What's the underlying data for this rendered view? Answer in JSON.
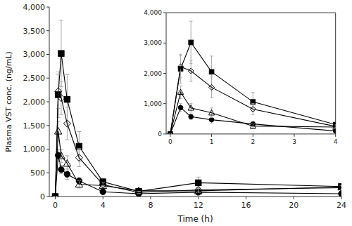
{
  "chart_data": [
    {
      "type": "line",
      "xlabel": "Time (h)",
      "ylabel": "Plasma VST conc. (ng/mL)",
      "x": [
        0,
        0.25,
        0.5,
        1,
        2,
        4,
        7,
        12,
        24
      ],
      "series": [
        {
          "color": "#000000",
          "marker": "circle",
          "line_style": "solid",
          "values": [
            0,
            870,
            570,
            470,
            330,
            100,
            60,
            90,
            60
          ],
          "errors": [
            0,
            130,
            90,
            110,
            70,
            30,
            15,
            25,
            15
          ]
        },
        {
          "color": "#000000",
          "marker": "triangle-open",
          "line_style": "solid",
          "values": [
            0,
            1380,
            860,
            700,
            260,
            230,
            120,
            120,
            200
          ],
          "errors": [
            0,
            210,
            140,
            160,
            80,
            55,
            35,
            35,
            45
          ]
        },
        {
          "color": "#000000",
          "marker": "square",
          "line_style": "solid",
          "values": [
            0,
            2150,
            3020,
            2050,
            1060,
            310,
            110,
            290,
            210
          ],
          "errors": [
            0,
            480,
            700,
            520,
            310,
            75,
            35,
            120,
            55
          ]
        },
        {
          "color": "#000000",
          "marker": "diamond-open",
          "line_style": "solid",
          "values": [
            0,
            2220,
            2080,
            1540,
            820,
            250,
            85,
            140,
            185
          ],
          "errors": [
            0,
            360,
            350,
            340,
            190,
            55,
            25,
            45,
            45
          ]
        }
      ],
      "xlim": [
        -0.5,
        24
      ],
      "ylim": [
        0,
        4000
      ],
      "xticks": [
        0,
        4,
        8,
        12,
        16,
        20,
        24
      ],
      "yticks": [
        0,
        500,
        {
          "value": 1000,
          "label": "1,000"
        },
        {
          "value": 1500,
          "label": "1,500"
        },
        {
          "value": 2000,
          "label": "2,000"
        },
        {
          "value": 2500,
          "label": "2,500"
        },
        {
          "value": 3000,
          "label": "3,000"
        },
        {
          "value": 3500,
          "label": "3,500"
        },
        {
          "value": 4000,
          "label": "4,000"
        }
      ],
      "grid": false
    },
    {
      "type": "line",
      "x": [
        0,
        0.25,
        0.5,
        1,
        2,
        4
      ],
      "series": [
        {
          "color": "#000000",
          "marker": "circle",
          "line_style": "solid",
          "values": [
            0,
            870,
            570,
            470,
            330,
            100
          ],
          "errors": [
            0,
            130,
            90,
            110,
            70,
            30
          ]
        },
        {
          "color": "#000000",
          "marker": "triangle-open",
          "line_style": "solid",
          "values": [
            0,
            1380,
            860,
            700,
            260,
            230
          ],
          "errors": [
            0,
            210,
            140,
            160,
            80,
            55
          ]
        },
        {
          "color": "#000000",
          "marker": "square",
          "line_style": "solid",
          "values": [
            0,
            2150,
            3020,
            2050,
            1060,
            310
          ],
          "errors": [
            0,
            480,
            700,
            520,
            310,
            75
          ]
        },
        {
          "color": "#000000",
          "marker": "diamond-open",
          "line_style": "solid",
          "values": [
            0,
            2220,
            2080,
            1540,
            820,
            250
          ],
          "errors": [
            0,
            360,
            350,
            340,
            190,
            55
          ]
        }
      ],
      "xlim": [
        -0.1,
        4
      ],
      "ylim": [
        0,
        4000
      ],
      "xticks": [
        0,
        1,
        2,
        3,
        4
      ],
      "yticks": [
        0,
        {
          "value": 1000,
          "label": "1,000"
        },
        {
          "value": 2000,
          "label": "2,000"
        },
        {
          "value": 3000,
          "label": "3,000"
        },
        {
          "value": 4000,
          "label": "4,000"
        }
      ],
      "grid": false
    }
  ]
}
